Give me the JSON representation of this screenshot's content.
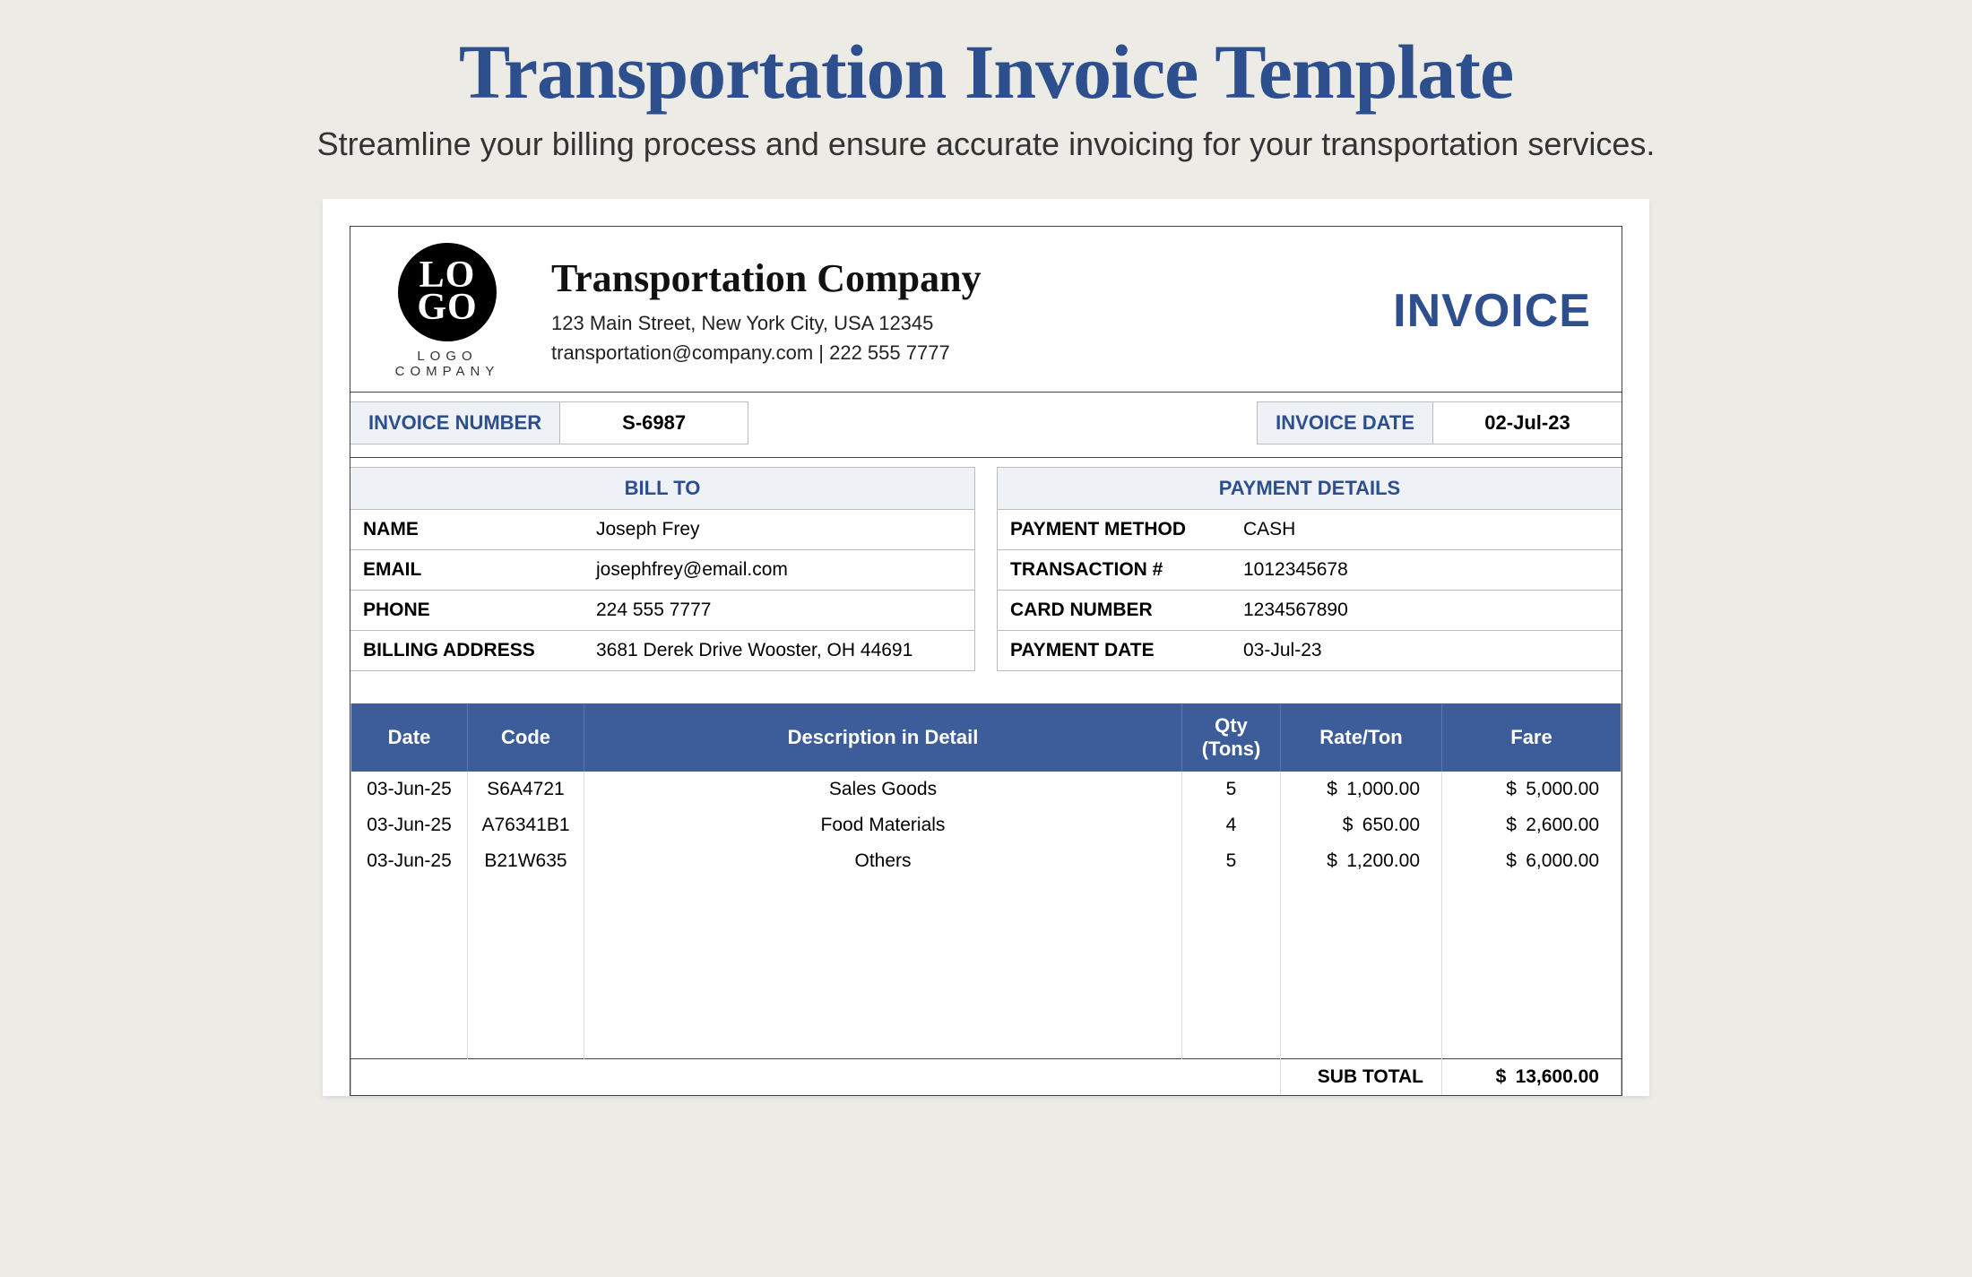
{
  "page": {
    "title": "Transportation Invoice Template",
    "subtitle": "Streamline your billing process and ensure accurate invoicing for your transportation services."
  },
  "logo": {
    "top": "LO",
    "bottom": "GO",
    "caption": "LOGO COMPANY"
  },
  "company": {
    "name": "Transportation Company",
    "address": "123 Main Street, New York City, USA 12345",
    "contact": "transportation@company.com | 222 555 7777"
  },
  "invoice_word": "INVOICE",
  "meta": {
    "number_label": "INVOICE NUMBER",
    "number_value": "S-6987",
    "date_label": "INVOICE DATE",
    "date_value": "02-Jul-23"
  },
  "bill_to": {
    "heading": "BILL TO",
    "rows": [
      {
        "k": "NAME",
        "v": "Joseph Frey"
      },
      {
        "k": "EMAIL",
        "v": "josephfrey@email.com"
      },
      {
        "k": "PHONE",
        "v": "224 555 7777"
      },
      {
        "k": "BILLING ADDRESS",
        "v": "3681 Derek Drive Wooster, OH 44691"
      }
    ]
  },
  "payment": {
    "heading": "PAYMENT DETAILS",
    "rows": [
      {
        "k": "PAYMENT METHOD",
        "v": "CASH"
      },
      {
        "k": "TRANSACTION #",
        "v": "1012345678"
      },
      {
        "k": "CARD NUMBER",
        "v": "1234567890"
      },
      {
        "k": "PAYMENT DATE",
        "v": "03-Jul-23"
      }
    ]
  },
  "items": {
    "headers": {
      "date": "Date",
      "code": "Code",
      "desc": "Description in Detail",
      "qty": "Qty (Tons)",
      "rate": "Rate/Ton",
      "fare": "Fare"
    },
    "rows": [
      {
        "date": "03-Jun-25",
        "code": "S6A4721",
        "desc": "Sales Goods",
        "qty": "5",
        "rate": "1,000.00",
        "fare": "5,000.00"
      },
      {
        "date": "03-Jun-25",
        "code": "A76341B1",
        "desc": "Food Materials",
        "qty": "4",
        "rate": "650.00",
        "fare": "2,600.00"
      },
      {
        "date": "03-Jun-25",
        "code": "B21W635",
        "desc": "Others",
        "qty": "5",
        "rate": "1,200.00",
        "fare": "6,000.00"
      }
    ],
    "subtotal_label": "SUB TOTAL",
    "subtotal_value": "13,600.00"
  },
  "colors": {
    "brand_blue": "#2d4f8e",
    "table_header_bg": "#3c5d99",
    "light_panel_bg": "#eef1f5",
    "page_bg": "#edebe6",
    "border_dark": "#444444",
    "border_light": "#bbbbbb"
  }
}
